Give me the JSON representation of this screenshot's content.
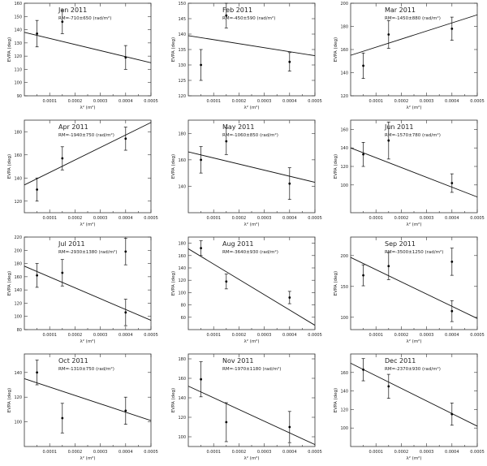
{
  "chart_data": [
    {
      "type": "scatter",
      "title": "Jan 2011",
      "subtitle": "RM=-710±650 (rad/m²)",
      "xlabel": "λ² (m²)",
      "ylabel": "EVPA (deg)",
      "xlim": [
        0,
        0.0005
      ],
      "ylim": [
        90,
        160
      ],
      "yticks": [
        90,
        100,
        110,
        120,
        130,
        140,
        150,
        160
      ],
      "xticks": [
        0.0001,
        0.0002,
        0.0003,
        0.0004,
        0.0005
      ],
      "xtick_labels": [
        "0.0001",
        "0.0002",
        "0.0003",
        "0.0004",
        "0.0005"
      ],
      "points": [
        {
          "x": 5e-05,
          "y": 137,
          "err": 10
        },
        {
          "x": 0.00015,
          "y": 146,
          "err": 9
        },
        {
          "x": 0.0004,
          "y": 119,
          "err": 9
        }
      ],
      "fit": {
        "y0": 138,
        "y1": 115
      }
    },
    {
      "type": "scatter",
      "title": "Feb 2011",
      "subtitle": "RM=-450±590 (rad/m²)",
      "xlabel": "λ² (m²)",
      "ylabel": "EVPA (deg)",
      "xlim": [
        0,
        0.0005
      ],
      "ylim": [
        120,
        150
      ],
      "yticks": [
        120,
        125,
        130,
        135,
        140,
        145,
        150
      ],
      "xticks": [
        0.0001,
        0.0002,
        0.0003,
        0.0004,
        0.0005
      ],
      "xtick_labels": [
        "0.0001",
        "0.0002",
        "0.0003",
        "0.0004",
        "0.0005"
      ],
      "points": [
        {
          "x": 5e-05,
          "y": 130,
          "err": 5
        },
        {
          "x": 0.00015,
          "y": 146,
          "err": 4
        },
        {
          "x": 0.0004,
          "y": 131,
          "err": 3
        }
      ],
      "fit": {
        "y0": 139.5,
        "y1": 133
      }
    },
    {
      "type": "scatter",
      "title": "Mar 2011",
      "subtitle": "RM=-1450±880 (rad/m²)",
      "xlabel": "λ² (m²)",
      "ylabel": "EVPA (deg)",
      "xlim": [
        0,
        0.0005
      ],
      "ylim": [
        120,
        200
      ],
      "yticks": [
        120,
        140,
        160,
        180,
        200
      ],
      "xticks": [
        0.0001,
        0.0002,
        0.0003,
        0.0004,
        0.0005
      ],
      "xtick_labels": [
        "0.0001",
        "0.0002",
        "0.0003",
        "0.0004",
        "0.0005"
      ],
      "points": [
        {
          "x": 5e-05,
          "y": 146,
          "err": 11
        },
        {
          "x": 0.00015,
          "y": 173,
          "err": 12
        },
        {
          "x": 0.0004,
          "y": 178,
          "err": 10
        }
      ],
      "fit": {
        "y0": 155,
        "y1": 190
      }
    },
    {
      "type": "scatter",
      "title": "Apr 2011",
      "subtitle": "RM=-1940±750 (rad/m²)",
      "xlabel": "λ² (m²)",
      "ylabel": "EVPA (deg)",
      "xlim": [
        0,
        0.0005
      ],
      "ylim": [
        110,
        190
      ],
      "yticks": [
        120,
        140,
        160,
        180
      ],
      "xticks": [
        0.0001,
        0.0002,
        0.0003,
        0.0004,
        0.0005
      ],
      "xtick_labels": [
        "0.0001",
        "0.0002",
        "0.0003",
        "0.0004",
        "0.0005"
      ],
      "points": [
        {
          "x": 5e-05,
          "y": 130,
          "err": 10
        },
        {
          "x": 0.00015,
          "y": 157,
          "err": 10
        },
        {
          "x": 0.0004,
          "y": 174,
          "err": 10
        }
      ],
      "fit": {
        "y0": 134,
        "y1": 188
      }
    },
    {
      "type": "scatter",
      "title": "May 2011",
      "subtitle": "RM=-1060±850 (rad/m²)",
      "xlabel": "λ² (m²)",
      "ylabel": "EVPA (deg)",
      "xlim": [
        0,
        0.0005
      ],
      "ylim": [
        120,
        190
      ],
      "yticks": [
        140,
        160,
        180
      ],
      "xticks": [
        0.0001,
        0.0002,
        0.0003,
        0.0004,
        0.0005
      ],
      "xtick_labels": [
        "0.0001",
        "0.0002",
        "0.0003",
        "0.0004",
        "0.0005"
      ],
      "points": [
        {
          "x": 5e-05,
          "y": 160,
          "err": 10
        },
        {
          "x": 0.00015,
          "y": 174,
          "err": 10
        },
        {
          "x": 0.0004,
          "y": 142,
          "err": 12
        }
      ],
      "fit": {
        "y0": 166,
        "y1": 143
      }
    },
    {
      "type": "scatter",
      "title": "Jun 2011",
      "subtitle": "RM=-1570±780 (rad/m²)",
      "xlabel": "λ² (m²)",
      "ylabel": "EVPA (deg)",
      "xlim": [
        0,
        0.0005
      ],
      "ylim": [
        70,
        170
      ],
      "yticks": [
        100,
        120,
        140,
        160
      ],
      "xticks": [
        0.0001,
        0.0002,
        0.0003,
        0.0004,
        0.0005
      ],
      "xtick_labels": [
        "0.0001",
        "0.0002",
        "0.0003",
        "0.0004",
        "0.0005"
      ],
      "points": [
        {
          "x": 5e-05,
          "y": 133,
          "err": 13
        },
        {
          "x": 0.00015,
          "y": 148,
          "err": 20
        },
        {
          "x": 0.0004,
          "y": 102,
          "err": 10
        }
      ],
      "fit": {
        "y0": 140,
        "y1": 87
      }
    },
    {
      "type": "scatter",
      "title": "Jul 2011",
      "subtitle": "RM=-2930±1380 (rad/m²)",
      "xlabel": "λ² (m²)",
      "ylabel": "EVPA (deg)",
      "xlim": [
        0,
        0.0005
      ],
      "ylim": [
        80,
        220
      ],
      "yticks": [
        80,
        100,
        120,
        140,
        160,
        180,
        200,
        220
      ],
      "xticks": [
        0.0001,
        0.0002,
        0.0003,
        0.0004,
        0.0005
      ],
      "xtick_labels": [
        "0.0001",
        "0.0002",
        "0.0003",
        "0.0004",
        "0.0005"
      ],
      "points": [
        {
          "x": 5e-05,
          "y": 162,
          "err": 18
        },
        {
          "x": 0.00015,
          "y": 166,
          "err": 20
        },
        {
          "x": 0.0004,
          "y": 198,
          "err": 20
        },
        {
          "x": 0.0004,
          "y": 106,
          "err": 20
        }
      ],
      "fit": {
        "y0": 176,
        "y1": 94
      }
    },
    {
      "type": "scatter",
      "title": "Aug 2011",
      "subtitle": "RM=-3640±930 (rad/m²)",
      "xlabel": "λ² (m²)",
      "ylabel": "EVPA (deg)",
      "xlim": [
        0,
        0.0005
      ],
      "ylim": [
        40,
        190
      ],
      "yticks": [
        60,
        80,
        100,
        120,
        140,
        160,
        180
      ],
      "xticks": [
        0.0001,
        0.0002,
        0.0003,
        0.0004,
        0.0005
      ],
      "xtick_labels": [
        "0.0001",
        "0.0002",
        "0.0003",
        "0.0004",
        "0.0005"
      ],
      "points": [
        {
          "x": 5e-05,
          "y": 172,
          "err": 12
        },
        {
          "x": 0.00015,
          "y": 118,
          "err": 12
        },
        {
          "x": 0.0004,
          "y": 92,
          "err": 10
        }
      ],
      "fit": {
        "y0": 171,
        "y1": 47
      }
    },
    {
      "type": "scatter",
      "title": "Sep 2011",
      "subtitle": "RM=-3500±1250 (rad/m²)",
      "xlabel": "λ² (m²)",
      "ylabel": "EVPA (deg)",
      "xlim": [
        0,
        0.0005
      ],
      "ylim": [
        80,
        230
      ],
      "yticks": [
        100,
        150,
        200
      ],
      "xticks": [
        0.0001,
        0.0002,
        0.0003,
        0.0004,
        0.0005
      ],
      "xtick_labels": [
        "0.0001",
        "0.0002",
        "0.0003",
        "0.0004",
        "0.0005"
      ],
      "points": [
        {
          "x": 5e-05,
          "y": 168,
          "err": 17
        },
        {
          "x": 0.00015,
          "y": 183,
          "err": 22
        },
        {
          "x": 0.0004,
          "y": 190,
          "err": 22
        },
        {
          "x": 0.0004,
          "y": 110,
          "err": 17
        }
      ],
      "fit": {
        "y0": 197,
        "y1": 98
      }
    },
    {
      "type": "scatter",
      "title": "Oct 2011",
      "subtitle": "RM=-1310±750 (rad/m²)",
      "xlabel": "λ² (m²)",
      "ylabel": "EVPA (deg)",
      "xlim": [
        0,
        0.0005
      ],
      "ylim": [
        80,
        155
      ],
      "yticks": [
        100,
        120,
        140
      ],
      "xticks": [
        0.0001,
        0.0002,
        0.0003,
        0.0004,
        0.0005
      ],
      "xtick_labels": [
        "0.0001",
        "0.0002",
        "0.0003",
        "0.0004",
        "0.0005"
      ],
      "points": [
        {
          "x": 5e-05,
          "y": 140,
          "err": 10
        },
        {
          "x": 0.00015,
          "y": 103,
          "err": 12
        },
        {
          "x": 0.0004,
          "y": 109,
          "err": 11
        }
      ],
      "fit": {
        "y0": 135,
        "y1": 101
      }
    },
    {
      "type": "scatter",
      "title": "Nov 2011",
      "subtitle": "RM=-1970±1180 (rad/m²)",
      "xlabel": "λ² (m²)",
      "ylabel": "EVPA (deg)",
      "xlim": [
        0,
        0.0005
      ],
      "ylim": [
        90,
        185
      ],
      "yticks": [
        100,
        120,
        140,
        160,
        180
      ],
      "xticks": [
        0.0001,
        0.0002,
        0.0003,
        0.0004,
        0.0005
      ],
      "xtick_labels": [
        "0.0001",
        "0.0002",
        "0.0003",
        "0.0004",
        "0.0005"
      ],
      "points": [
        {
          "x": 5e-05,
          "y": 159,
          "err": 18
        },
        {
          "x": 0.00015,
          "y": 115,
          "err": 20
        },
        {
          "x": 0.0004,
          "y": 110,
          "err": 16
        }
      ],
      "fit": {
        "y0": 152,
        "y1": 92
      }
    },
    {
      "type": "scatter",
      "title": "Dec 2011",
      "subtitle": "RM=-2370±930 (rad/m²)",
      "xlabel": "λ² (m²)",
      "ylabel": "EVPA (deg)",
      "xlim": [
        0,
        0.0005
      ],
      "ylim": [
        80,
        180
      ],
      "yticks": [
        100,
        120,
        140,
        160
      ],
      "xticks": [
        0.0001,
        0.0002,
        0.0003,
        0.0004,
        0.0005
      ],
      "xtick_labels": [
        "0.0001",
        "0.0002",
        "0.0003",
        "0.0004",
        "0.0005"
      ],
      "points": [
        {
          "x": 5e-05,
          "y": 163,
          "err": 12
        },
        {
          "x": 0.00015,
          "y": 145,
          "err": 13
        },
        {
          "x": 0.0004,
          "y": 115,
          "err": 12
        }
      ],
      "fit": {
        "y0": 170,
        "y1": 102
      }
    }
  ]
}
